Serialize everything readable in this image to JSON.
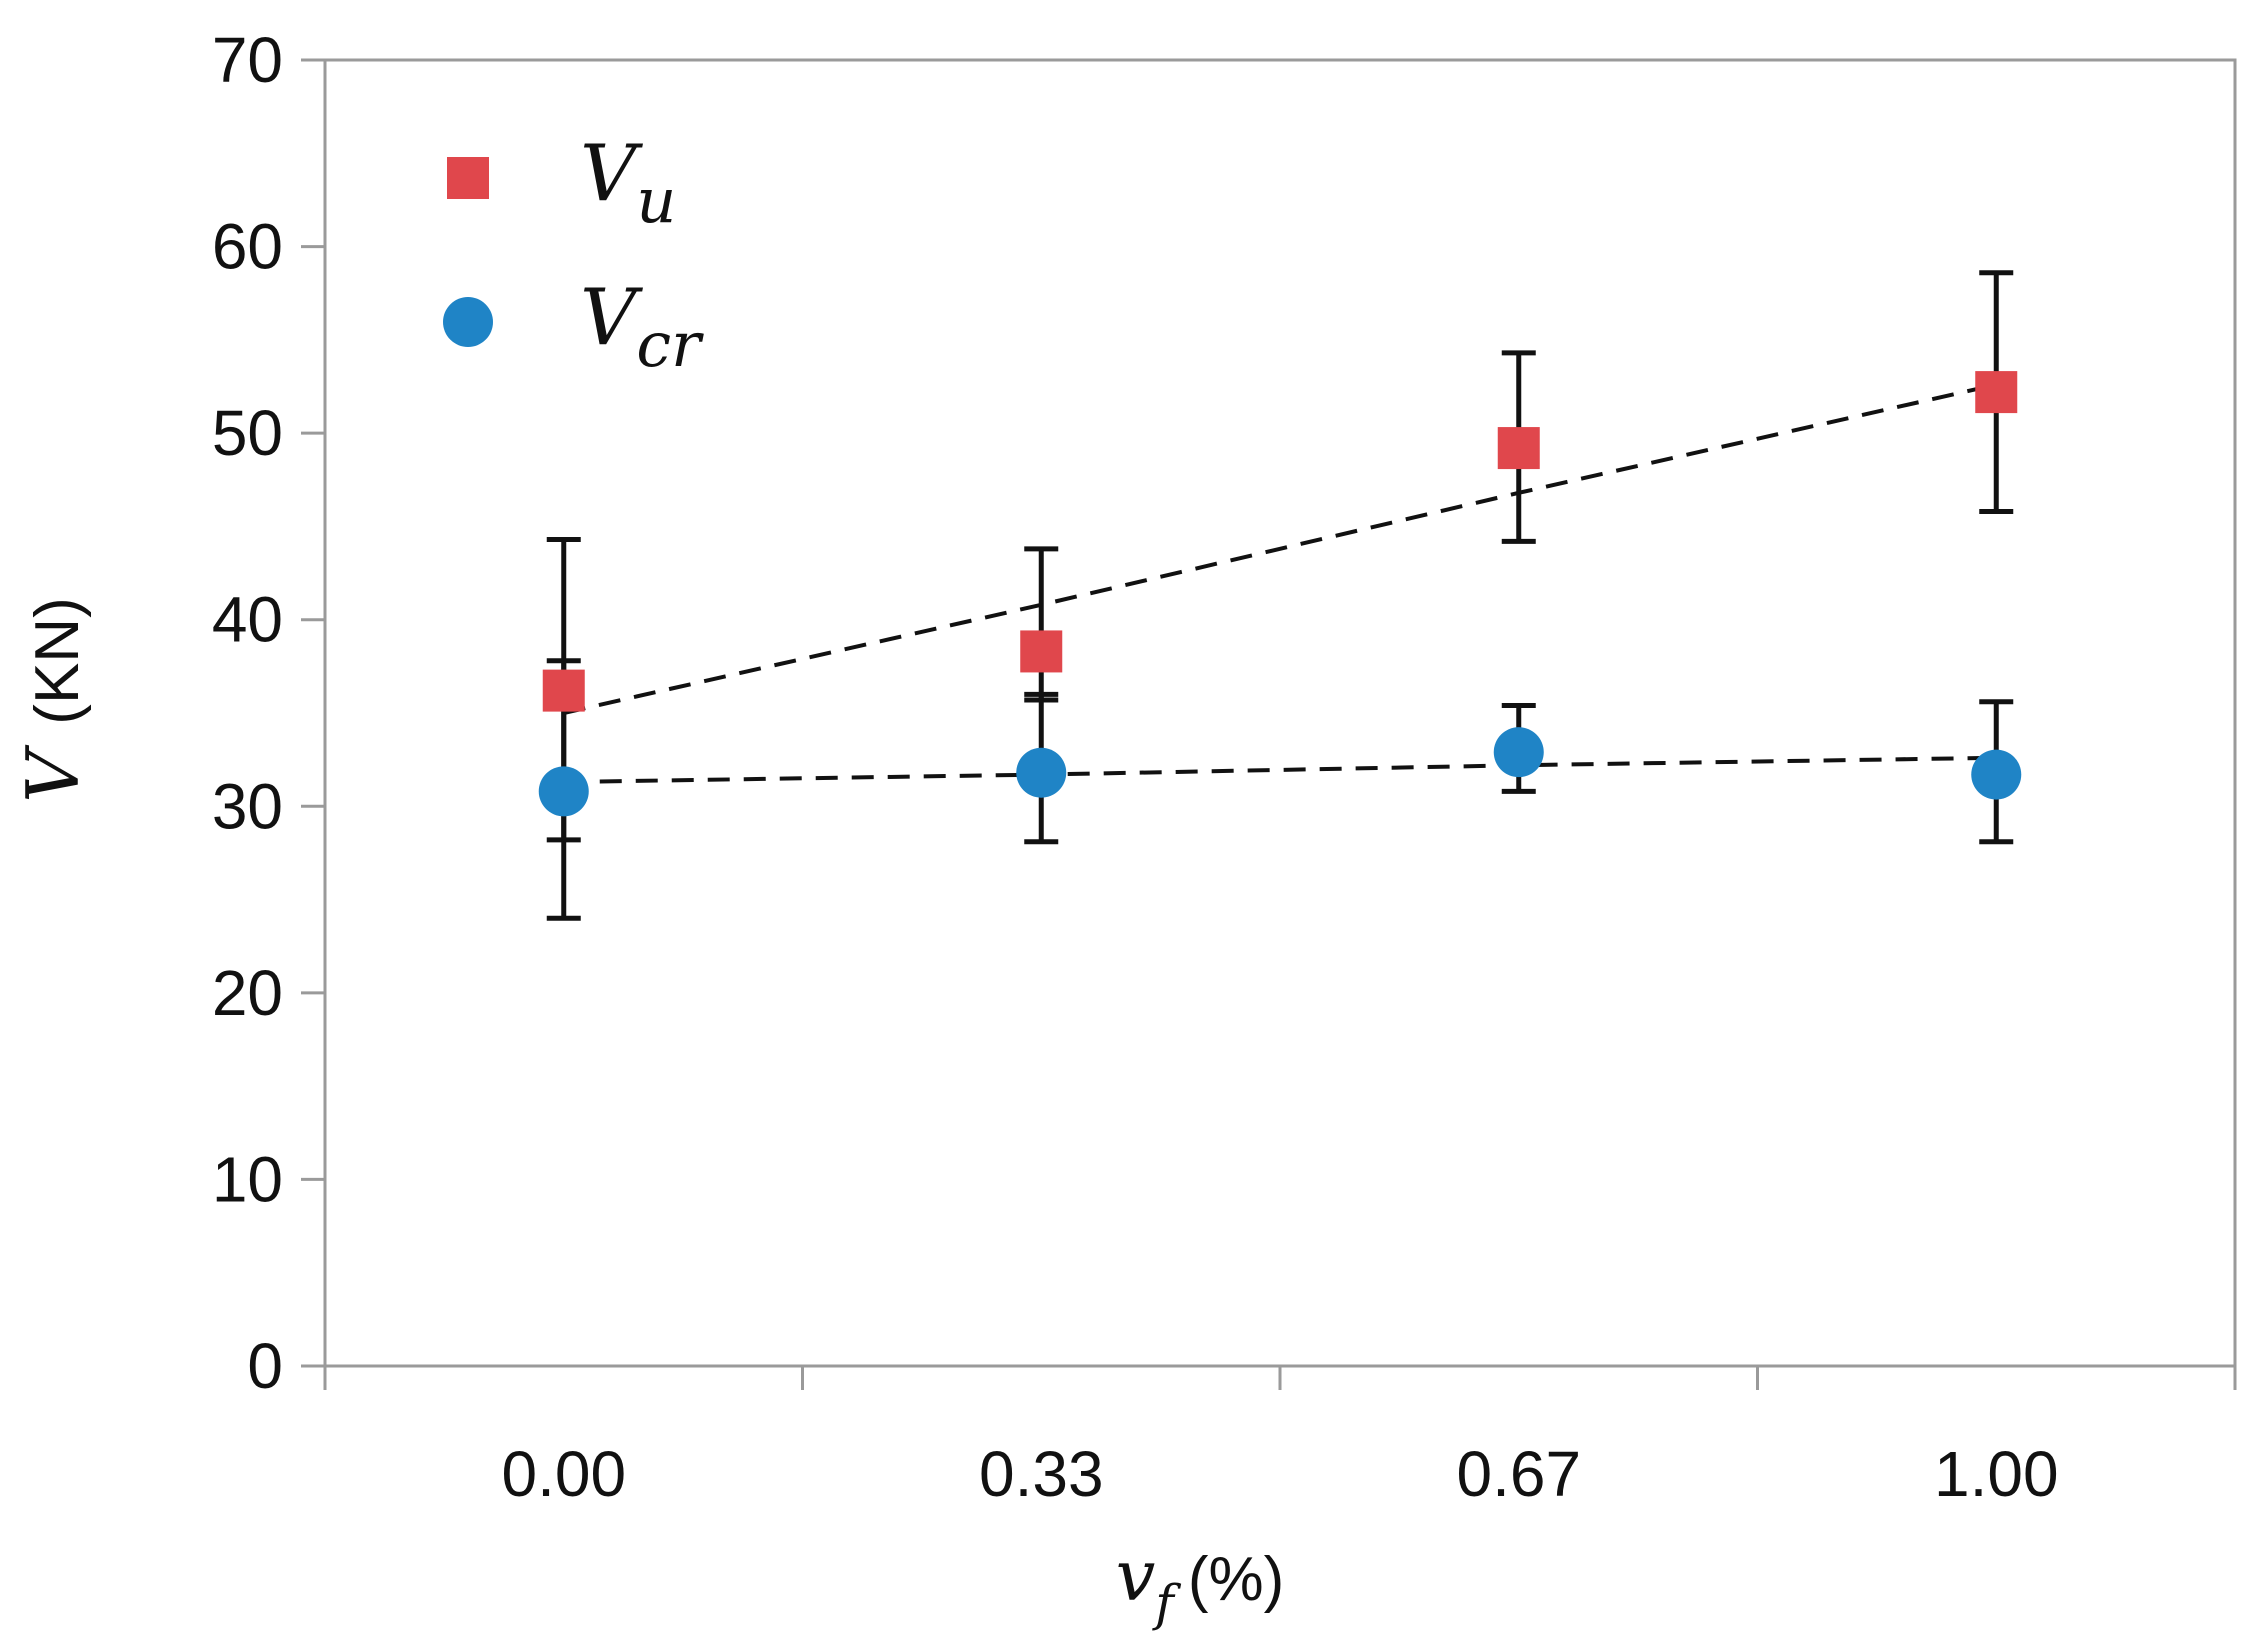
{
  "chart_data": {
    "type": "scatter",
    "title": "",
    "categories": [
      "0.00",
      "0.33",
      "0.67",
      "1.00"
    ],
    "xlabel": {
      "var": "v",
      "sub": "f",
      "unit": "(%)"
    },
    "ylabel": {
      "var": "V",
      "unit": "(KN)"
    },
    "ylim": [
      0,
      70
    ],
    "yticks": [
      0,
      10,
      20,
      30,
      40,
      50,
      60,
      70
    ],
    "grid": false,
    "legend_position": "top-left",
    "colors": {
      "axis": "#9a9a9a",
      "error": "#111111",
      "trend": "#111111"
    },
    "series": [
      {
        "name": "Vu",
        "label_main": "V",
        "label_sub": "u",
        "marker": "square",
        "color": "#e0474c",
        "values": [
          36.2,
          38.3,
          49.2,
          52.2
        ],
        "err_upper": [
          44.3,
          43.8,
          54.3,
          58.6
        ],
        "err_lower": [
          28.2,
          35.7,
          44.2,
          45.8
        ],
        "trend": [
          35.0,
          40.8,
          46.8,
          52.6
        ]
      },
      {
        "name": "Vcr",
        "label_main": "V",
        "label_sub": "cr",
        "marker": "circle",
        "color": "#1f84c6",
        "values": [
          30.8,
          31.8,
          32.9,
          31.7
        ],
        "err_upper": [
          37.8,
          36.0,
          35.4,
          35.6
        ],
        "err_lower": [
          24.0,
          28.1,
          30.8,
          28.1
        ],
        "trend": [
          31.3,
          31.7,
          32.2,
          32.6
        ]
      }
    ]
  }
}
